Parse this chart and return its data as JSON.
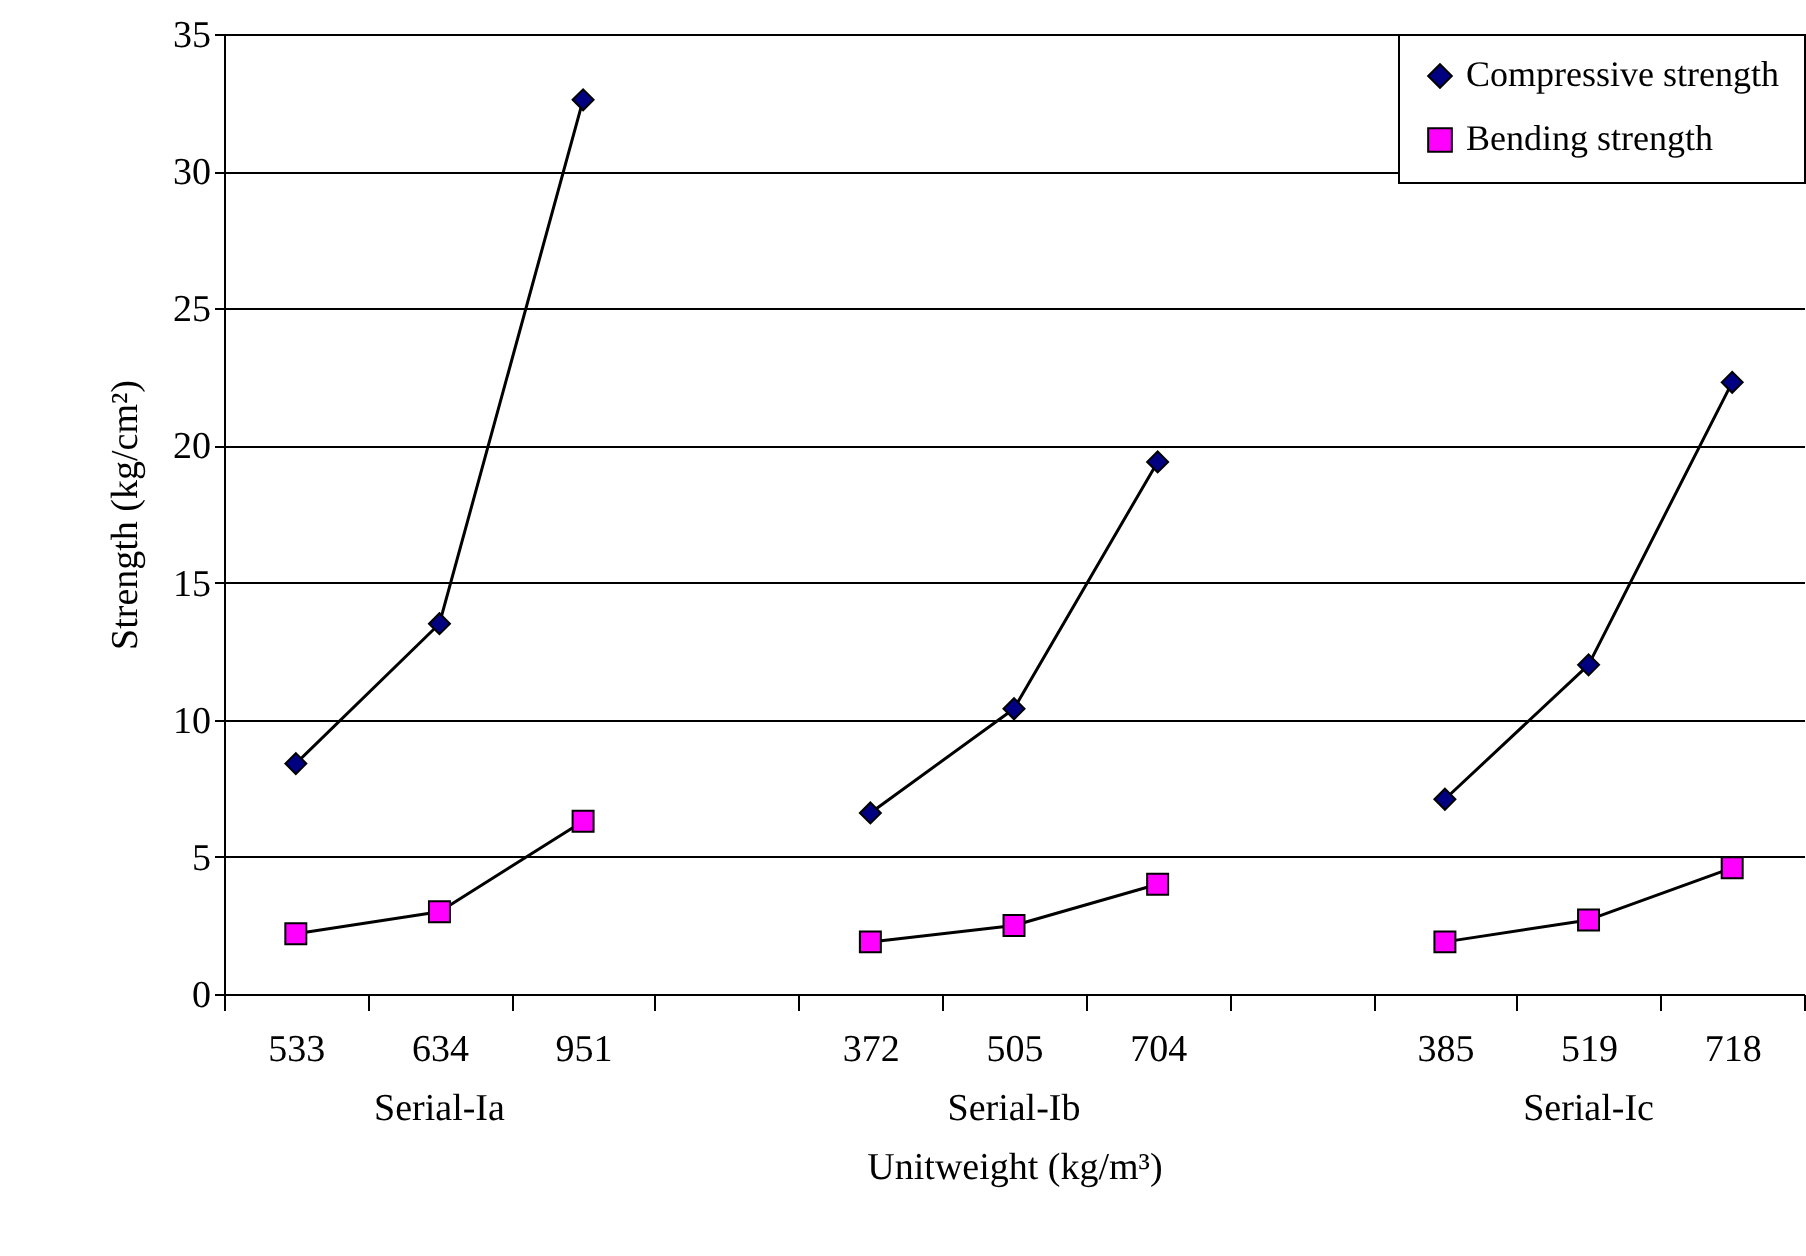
{
  "chart_data": {
    "type": "line",
    "xlabel": "Unitweight (kg/m³)",
    "ylabel": "Strength (kg/cm²)",
    "categories": [
      "533",
      "634",
      "951",
      null,
      "372",
      "505",
      "704",
      null,
      "385",
      "519",
      "718"
    ],
    "series": [
      {
        "name": "Compressive strength",
        "color": "#000080",
        "marker": "diamond",
        "values": [
          8.4,
          13.5,
          32.6,
          null,
          6.6,
          10.4,
          19.4,
          null,
          7.1,
          12.0,
          22.3
        ]
      },
      {
        "name": "Bending strength",
        "color": "#ff00ff",
        "marker": "square",
        "values": [
          2.2,
          3.0,
          6.3,
          null,
          1.9,
          2.5,
          4.0,
          null,
          1.9,
          2.7,
          4.6
        ]
      }
    ],
    "ylim": [
      0,
      35
    ],
    "yticks": [
      0,
      5,
      10,
      15,
      20,
      25,
      30,
      35
    ],
    "grid": "y",
    "legend": "top right",
    "annotations": [
      "Serial-Ia",
      "Serial-Ib",
      "Serial-Ic"
    ]
  }
}
